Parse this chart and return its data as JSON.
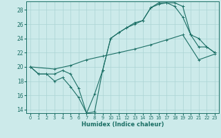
{
  "xlabel": "Humidex (Indice chaleur)",
  "bg_color": "#cceaea",
  "grid_color": "#aad4d4",
  "line_color": "#1a6e64",
  "xlim": [
    -0.5,
    23.5
  ],
  "ylim": [
    13.5,
    29.2
  ],
  "xticks": [
    0,
    1,
    2,
    3,
    4,
    5,
    6,
    7,
    8,
    9,
    10,
    11,
    12,
    13,
    14,
    15,
    16,
    17,
    18,
    19,
    20,
    21,
    22,
    23
  ],
  "yticks": [
    14,
    16,
    18,
    20,
    22,
    24,
    26,
    28
  ],
  "line1_x": [
    0,
    1,
    2,
    3,
    4,
    5,
    6,
    7,
    8,
    9,
    10,
    11,
    12,
    13,
    14,
    15,
    16,
    17,
    18,
    19,
    20,
    21,
    22,
    23
  ],
  "line1_y": [
    20,
    19,
    19,
    18,
    18.5,
    17.2,
    15.7,
    13.5,
    16.2,
    19.5,
    24,
    24.8,
    25.5,
    26,
    26.5,
    28.3,
    28.8,
    29,
    28.5,
    27,
    24.5,
    22.8,
    22.8,
    22
  ],
  "line2_x": [
    0,
    1,
    2,
    3,
    4,
    5,
    6,
    7,
    8,
    9,
    10,
    11,
    12,
    13,
    14,
    15,
    16,
    17,
    18,
    19,
    20,
    21,
    22,
    23
  ],
  "line2_y": [
    20,
    19,
    19,
    19,
    19.5,
    19,
    17,
    13.5,
    13.7,
    19.5,
    24,
    24.8,
    25.5,
    26.2,
    26.5,
    28.3,
    29,
    29,
    29,
    28.5,
    24.5,
    24,
    22.8,
    22
  ],
  "line3_x": [
    0,
    3,
    5,
    7,
    9,
    11,
    13,
    15,
    17,
    19,
    21,
    23
  ],
  "line3_y": [
    20,
    19.7,
    20.2,
    21.0,
    21.5,
    22.0,
    22.5,
    23.1,
    23.8,
    24.5,
    21.0,
    21.8
  ]
}
